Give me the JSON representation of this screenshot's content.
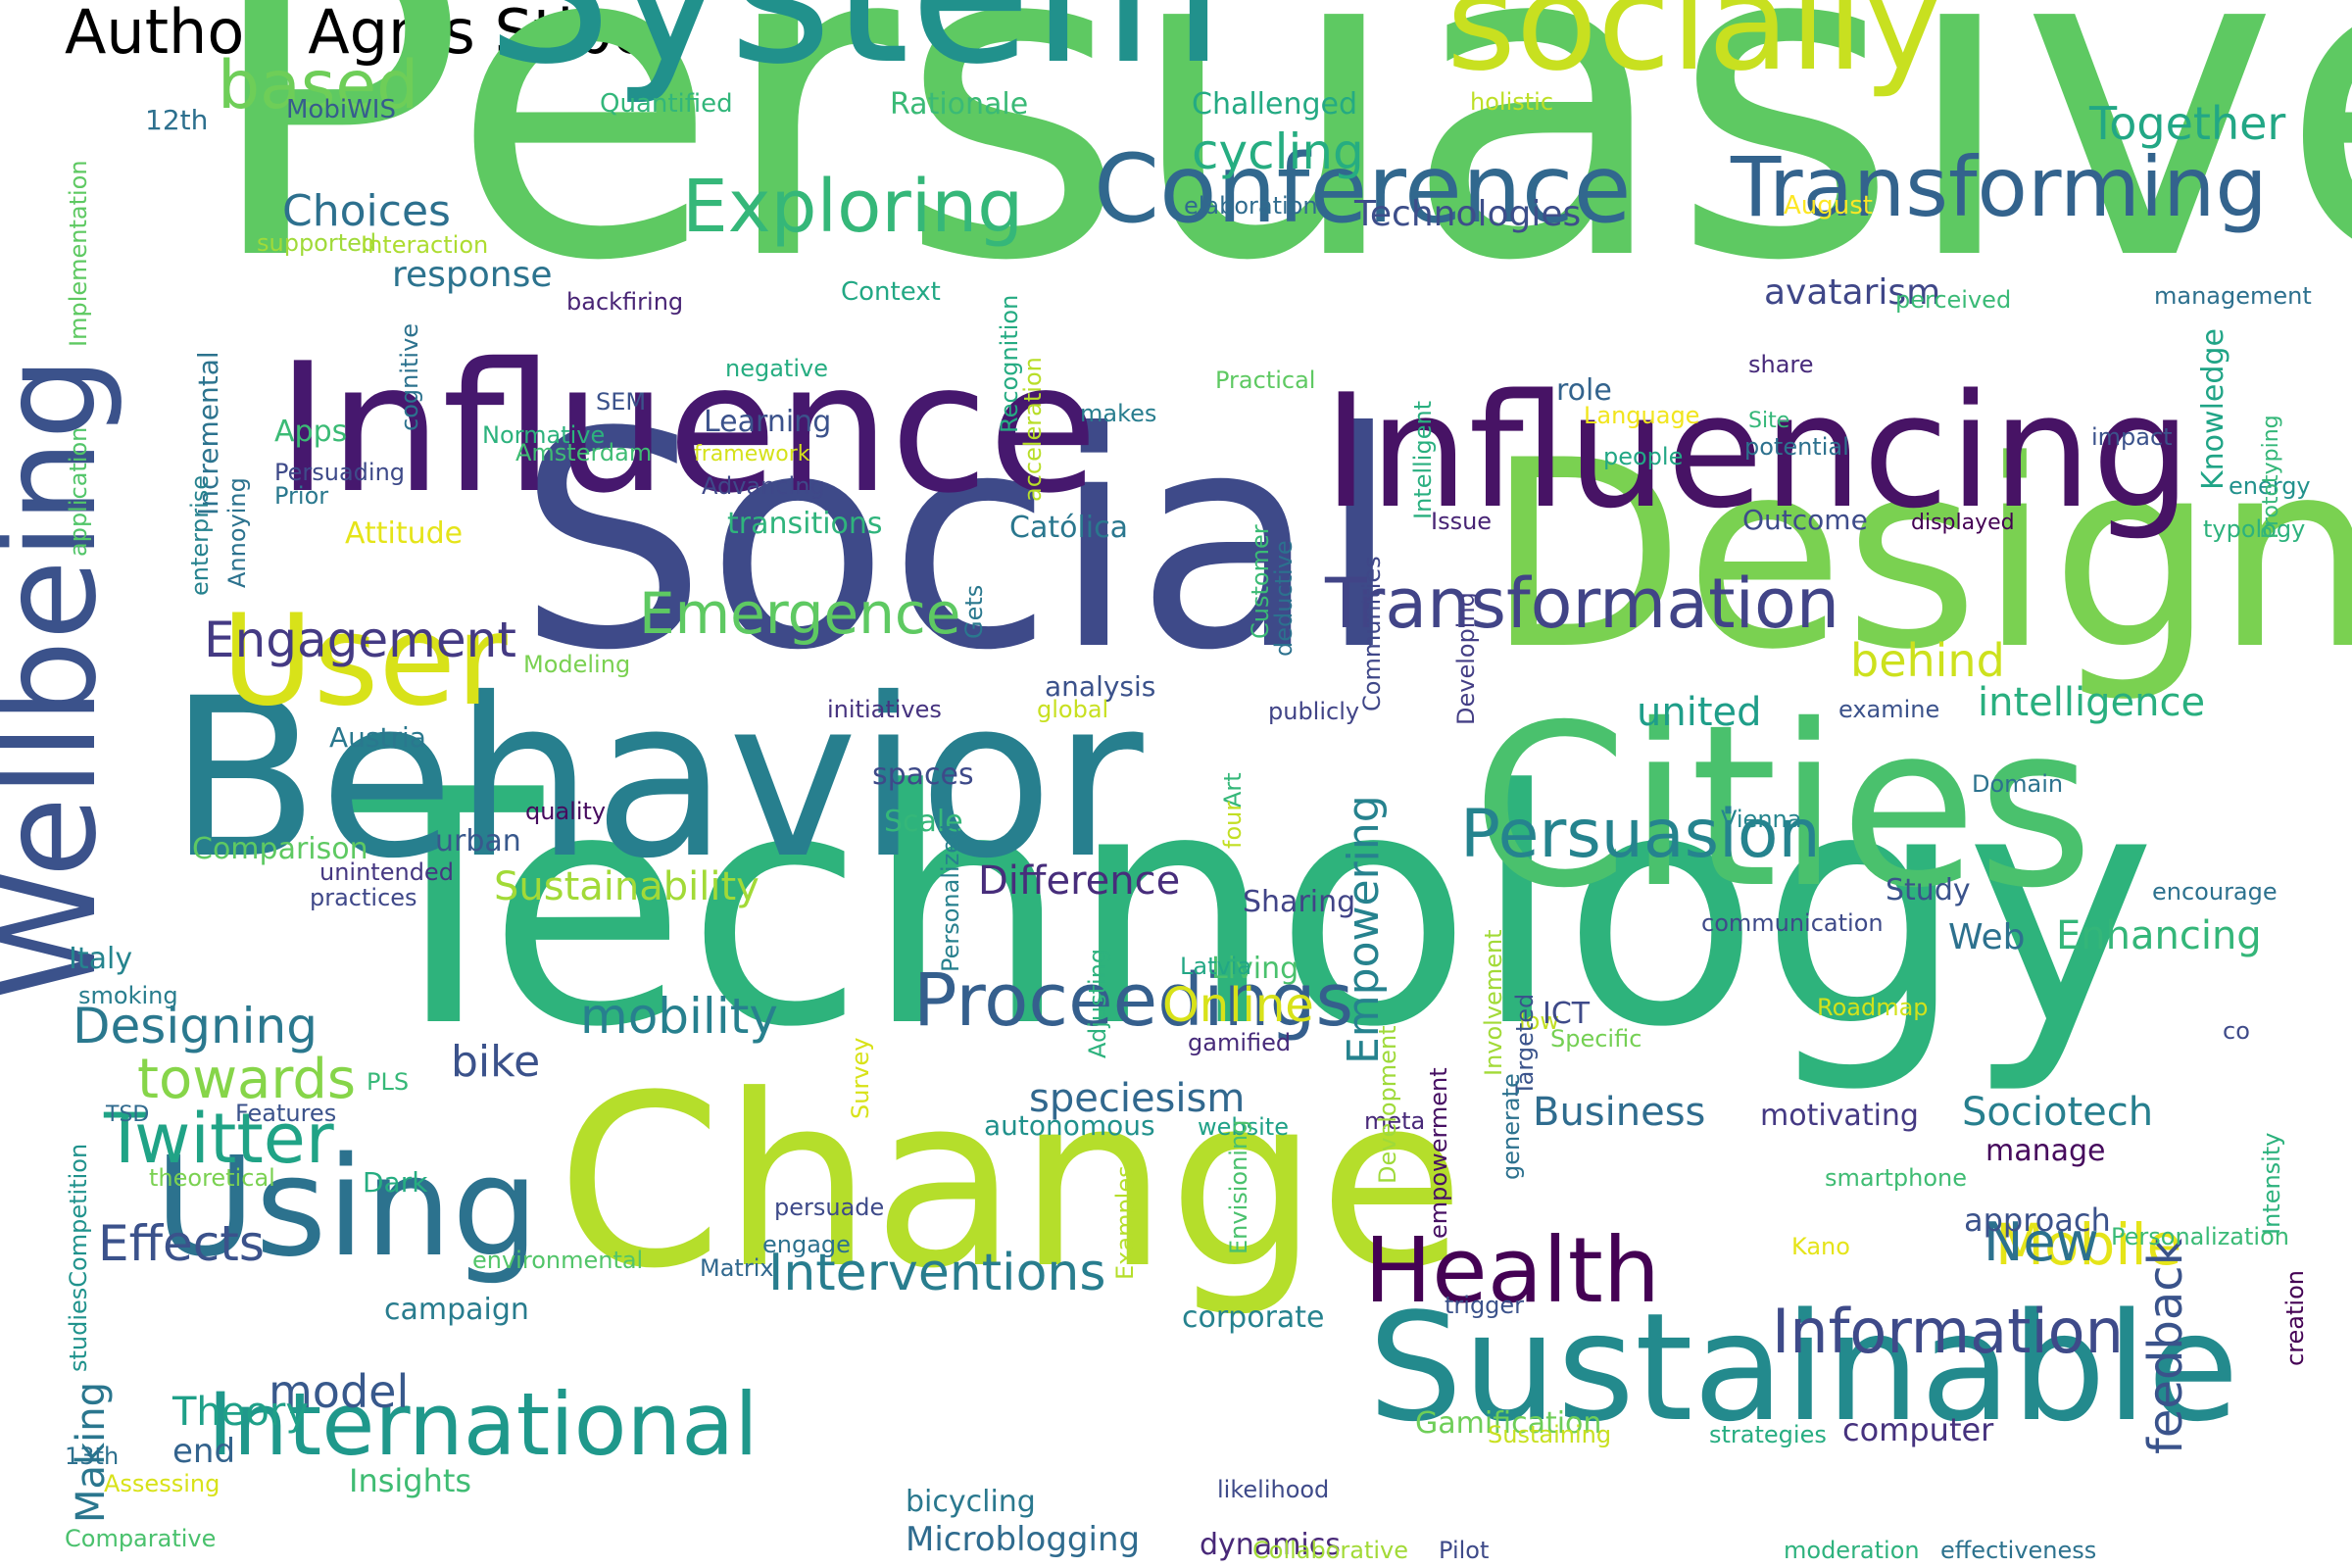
{
  "title": "Author: Agnis Stibe",
  "palette": "viridis",
  "words": [
    {
      "text": "Persuasive",
      "color": "#5ec962"
    },
    {
      "text": "Technology",
      "color": "#2eb37c"
    },
    {
      "text": "Social",
      "color": "#3e4a89"
    },
    {
      "text": "Behavior",
      "color": "#277f8e"
    },
    {
      "text": "Design",
      "color": "#7ad151"
    },
    {
      "text": "System",
      "color": "#21918c"
    },
    {
      "text": "Change",
      "color": "#b5de2b"
    },
    {
      "text": "Cities",
      "color": "#4ac16d"
    },
    {
      "text": "Influence",
      "color": "#46186e"
    },
    {
      "text": "Influencing",
      "color": "#471365"
    },
    {
      "text": "Sustainable",
      "color": "#238a8d"
    },
    {
      "text": "socially",
      "color": "#c8e020"
    },
    {
      "text": "Wellbeing",
      "color": "#3b528b"
    },
    {
      "text": "Using",
      "color": "#2c728e"
    },
    {
      "text": "User",
      "color": "#d8e219"
    },
    {
      "text": "Conference",
      "color": "#31688e"
    },
    {
      "text": "Transforming",
      "color": "#33638d"
    },
    {
      "text": "International",
      "color": "#1f988b"
    },
    {
      "text": "Health",
      "color": "#440154"
    },
    {
      "text": "Proceedings",
      "color": "#355f8d"
    },
    {
      "text": "Transformation",
      "color": "#414487"
    },
    {
      "text": "Persuasion",
      "color": "#25838e"
    },
    {
      "text": "Exploring",
      "color": "#35b779"
    },
    {
      "text": "Information",
      "color": "#3e4a89"
    },
    {
      "text": "Twitter",
      "color": "#20a386"
    },
    {
      "text": "Emergence",
      "color": "#5ec962"
    },
    {
      "text": "based",
      "color": "#6ece58"
    },
    {
      "text": "Interventions",
      "color": "#287d8e"
    },
    {
      "text": "Mobile",
      "color": "#e5e419"
    },
    {
      "text": "Engagement",
      "color": "#443a83"
    },
    {
      "text": "towards",
      "color": "#86d549"
    },
    {
      "text": "Effects",
      "color": "#3b528b"
    },
    {
      "text": "Designing",
      "color": "#2a788e"
    },
    {
      "text": "Empowering",
      "color": "#26828e"
    },
    {
      "text": "mobility",
      "color": "#27808e"
    },
    {
      "text": "feedback",
      "color": "#3a538b"
    },
    {
      "text": "New",
      "color": "#2c718e"
    },
    {
      "text": "model",
      "color": "#38598c"
    },
    {
      "text": "Theory",
      "color": "#1fa088"
    },
    {
      "text": "Together",
      "color": "#22a785"
    },
    {
      "text": "cycling",
      "color": "#26ad81"
    },
    {
      "text": "Choices",
      "color": "#2d708e"
    },
    {
      "text": "Online",
      "color": "#d8e219"
    },
    {
      "text": "Sustainability",
      "color": "#a2da37"
    },
    {
      "text": "Business",
      "color": "#2f6c8e"
    },
    {
      "text": "Sociotech",
      "color": "#277f8e"
    },
    {
      "text": "Difference",
      "color": "#472d7b"
    },
    {
      "text": "behind",
      "color": "#cde11d"
    },
    {
      "text": "intelligence",
      "color": "#29af7f"
    },
    {
      "text": "united",
      "color": "#1f9e89"
    },
    {
      "text": "Web",
      "color": "#2d718e"
    },
    {
      "text": "Enhancing",
      "color": "#34b679"
    },
    {
      "text": "bike",
      "color": "#3b528b"
    },
    {
      "text": "speciesism",
      "color": "#31688e"
    },
    {
      "text": "Microblogging",
      "color": "#2f6b8e"
    },
    {
      "text": "Technologies",
      "color": "#3d4e8a"
    },
    {
      "text": "avatarism",
      "color": "#3f4788"
    },
    {
      "text": "response",
      "color": "#2c738e"
    },
    {
      "text": "Making",
      "color": "#2a768e"
    },
    {
      "text": "end",
      "color": "#33638d"
    },
    {
      "text": "Insights",
      "color": "#3fbc73"
    },
    {
      "text": "Gamification",
      "color": "#6ece58"
    },
    {
      "text": "computer",
      "color": "#46327e"
    },
    {
      "text": "Comparison",
      "color": "#5ec962"
    },
    {
      "text": "Scale",
      "color": "#35b779"
    },
    {
      "text": "spaces",
      "color": "#3e4a89"
    },
    {
      "text": "urban",
      "color": "#38588c"
    },
    {
      "text": "Sharing",
      "color": "#414487"
    },
    {
      "text": "Living",
      "color": "#4ac16d"
    },
    {
      "text": "Study",
      "color": "#3a538b"
    },
    {
      "text": "Austria",
      "color": "#2a788e"
    },
    {
      "text": "analysis",
      "color": "#3b528b"
    },
    {
      "text": "Italy",
      "color": "#25848e"
    },
    {
      "text": "campaign",
      "color": "#287c8e"
    },
    {
      "text": "corporate",
      "color": "#26828e"
    },
    {
      "text": "autonomous",
      "color": "#21918c"
    },
    {
      "text": "website",
      "color": "#1fa187"
    },
    {
      "text": "motivating",
      "color": "#443983"
    },
    {
      "text": "manage",
      "color": "#460a5d"
    },
    {
      "text": "approach",
      "color": "#3b528b"
    },
    {
      "text": "dynamics",
      "color": "#482878"
    },
    {
      "text": "bicycling",
      "color": "#2a788e"
    },
    {
      "text": "Outcome",
      "color": "#3e4c8a"
    },
    {
      "text": "Católica",
      "color": "#2a778e"
    },
    {
      "text": "transitions",
      "color": "#2fb47c"
    },
    {
      "text": "Learning",
      "color": "#3b528b"
    },
    {
      "text": "role",
      "color": "#33638d"
    },
    {
      "text": "Knowledge",
      "color": "#20a486"
    },
    {
      "text": "Challenged",
      "color": "#24aa83"
    },
    {
      "text": "Rationale",
      "color": "#3aba76"
    },
    {
      "text": "Quantified",
      "color": "#32b67a"
    },
    {
      "text": "holistic",
      "color": "#bddf26"
    },
    {
      "text": "MobiWIS",
      "color": "#365d8d"
    },
    {
      "text": "12th",
      "color": "#2d708e"
    },
    {
      "text": "elaboration",
      "color": "#2f6b8e"
    },
    {
      "text": "August",
      "color": "#fde725"
    },
    {
      "text": "Context",
      "color": "#22a884"
    },
    {
      "text": "backfiring",
      "color": "#482475"
    },
    {
      "text": "supported",
      "color": "#a0da39"
    },
    {
      "text": "Interaction",
      "color": "#addc30"
    },
    {
      "text": "perceived",
      "color": "#3aba76"
    },
    {
      "text": "management",
      "color": "#2d708e"
    },
    {
      "text": "Incremental",
      "color": "#2c738e"
    },
    {
      "text": "cognitive",
      "color": "#2c728e"
    },
    {
      "text": "Implementation",
      "color": "#5ec962"
    },
    {
      "text": "application",
      "color": "#52c569"
    },
    {
      "text": "negative",
      "color": "#26ad81"
    },
    {
      "text": "Practical",
      "color": "#5ec962"
    },
    {
      "text": "share",
      "color": "#472a7a"
    },
    {
      "text": "SEM",
      "color": "#3b528b"
    },
    {
      "text": "makes",
      "color": "#287d8e"
    },
    {
      "text": "Language",
      "color": "#f1e51d"
    },
    {
      "text": "Site",
      "color": "#35b779"
    },
    {
      "text": "Apps",
      "color": "#3bbb75"
    },
    {
      "text": "Normative",
      "color": "#2db27d"
    },
    {
      "text": "Amsterdam",
      "color": "#3fbc73"
    },
    {
      "text": "framework",
      "color": "#d5e21a"
    },
    {
      "text": "people",
      "color": "#22a785"
    },
    {
      "text": "potential",
      "color": "#2d718e"
    },
    {
      "text": "impact",
      "color": "#3b528b"
    },
    {
      "text": "energy",
      "color": "#21918c"
    },
    {
      "text": "Persuading",
      "color": "#3e4a89"
    },
    {
      "text": "Prior",
      "color": "#2a788e"
    },
    {
      "text": "Advancing",
      "color": "#3f4889"
    },
    {
      "text": "Issue",
      "color": "#482475"
    },
    {
      "text": "displayed",
      "color": "#440154"
    },
    {
      "text": "typology",
      "color": "#2db27d"
    },
    {
      "text": "Prototyping",
      "color": "#35b779"
    },
    {
      "text": "Recognition",
      "color": "#25ab82"
    },
    {
      "text": "acceleration",
      "color": "#b8de29"
    },
    {
      "text": "Intelligent",
      "color": "#29af7f"
    },
    {
      "text": "Attitude",
      "color": "#e5e419"
    },
    {
      "text": "enterprise",
      "color": "#26828e"
    },
    {
      "text": "Annoying",
      "color": "#2c728e"
    },
    {
      "text": "Modeling",
      "color": "#7ad151"
    },
    {
      "text": "initiatives",
      "color": "#46337f"
    },
    {
      "text": "global",
      "color": "#c8e020"
    },
    {
      "text": "publicly",
      "color": "#414487"
    },
    {
      "text": "Customer",
      "color": "#3bbb75"
    },
    {
      "text": "deductive",
      "color": "#2c718e"
    },
    {
      "text": "Gets",
      "color": "#2a788e"
    },
    {
      "text": "examine",
      "color": "#3b528b"
    },
    {
      "text": "Communities",
      "color": "#3f4788"
    },
    {
      "text": "Developing",
      "color": "#433e85"
    },
    {
      "text": "Domain",
      "color": "#2c728e"
    },
    {
      "text": "quality",
      "color": "#460b5e"
    },
    {
      "text": "Art",
      "color": "#35b779"
    },
    {
      "text": "four",
      "color": "#c2df23"
    },
    {
      "text": "Vienna",
      "color": "#25858e"
    },
    {
      "text": "unintended",
      "color": "#453781"
    },
    {
      "text": "practices",
      "color": "#3f4889"
    },
    {
      "text": "Personalized",
      "color": "#27808e"
    },
    {
      "text": "encourage",
      "color": "#2c718e"
    },
    {
      "text": "communication",
      "color": "#3e4a89"
    },
    {
      "text": "smoking",
      "color": "#287d8e"
    },
    {
      "text": "Latvia",
      "color": "#22a785"
    },
    {
      "text": "Adjusting",
      "color": "#2db27d"
    },
    {
      "text": "low",
      "color": "#c2df23"
    },
    {
      "text": "ICT",
      "color": "#3e4a89"
    },
    {
      "text": "Specific",
      "color": "#75d054"
    },
    {
      "text": "Roadmap",
      "color": "#d2e21b"
    },
    {
      "text": "Involvement",
      "color": "#a2da37"
    },
    {
      "text": "gamified",
      "color": "#472a7a"
    },
    {
      "text": "co",
      "color": "#3e4a89"
    },
    {
      "text": "PLS",
      "color": "#37b878"
    },
    {
      "text": "TSD",
      "color": "#306a8e"
    },
    {
      "text": "Features",
      "color": "#3b528b"
    },
    {
      "text": "Dark",
      "color": "#26ad81"
    },
    {
      "text": "theoretical",
      "color": "#7ad151"
    },
    {
      "text": "meta",
      "color": "#482979"
    },
    {
      "text": "Envisioning",
      "color": "#4ac16d"
    },
    {
      "text": "Targeted",
      "color": "#3a538b"
    },
    {
      "text": "empowerment",
      "color": "#471063"
    },
    {
      "text": "generate",
      "color": "#2c718e"
    },
    {
      "text": "smartphone",
      "color": "#3fbc73"
    },
    {
      "text": "Intensity",
      "color": "#2db27d"
    },
    {
      "text": "Survey",
      "color": "#d8e219"
    },
    {
      "text": "Development",
      "color": "#9fda3a"
    },
    {
      "text": "Matrix",
      "color": "#31688e"
    },
    {
      "text": "persuade",
      "color": "#3e4a89"
    },
    {
      "text": "engage",
      "color": "#2c718e"
    },
    {
      "text": "Examples",
      "color": "#b5de2b"
    },
    {
      "text": "Personalization",
      "color": "#3aba76"
    },
    {
      "text": "creation",
      "color": "#440154"
    },
    {
      "text": "Kano",
      "color": "#e5e419"
    },
    {
      "text": "environmental",
      "color": "#52c569"
    },
    {
      "text": "studiesCompetition",
      "color": "#20928c"
    },
    {
      "text": "trigger",
      "color": "#3b528b"
    },
    {
      "text": "strategies",
      "color": "#27ad81"
    },
    {
      "text": "Sustaining",
      "color": "#c8e020"
    },
    {
      "text": "13th",
      "color": "#2d708e"
    },
    {
      "text": "Assessing",
      "color": "#d8e219"
    },
    {
      "text": "Comparative",
      "color": "#4ac16d"
    },
    {
      "text": "likelihood",
      "color": "#3e4a89"
    },
    {
      "text": "Collaborative",
      "color": "#a2da37"
    },
    {
      "text": "Pilot",
      "color": "#3e4a89"
    },
    {
      "text": "moderation",
      "color": "#2db27d"
    },
    {
      "text": "effectiveness",
      "color": "#2c728e"
    }
  ]
}
